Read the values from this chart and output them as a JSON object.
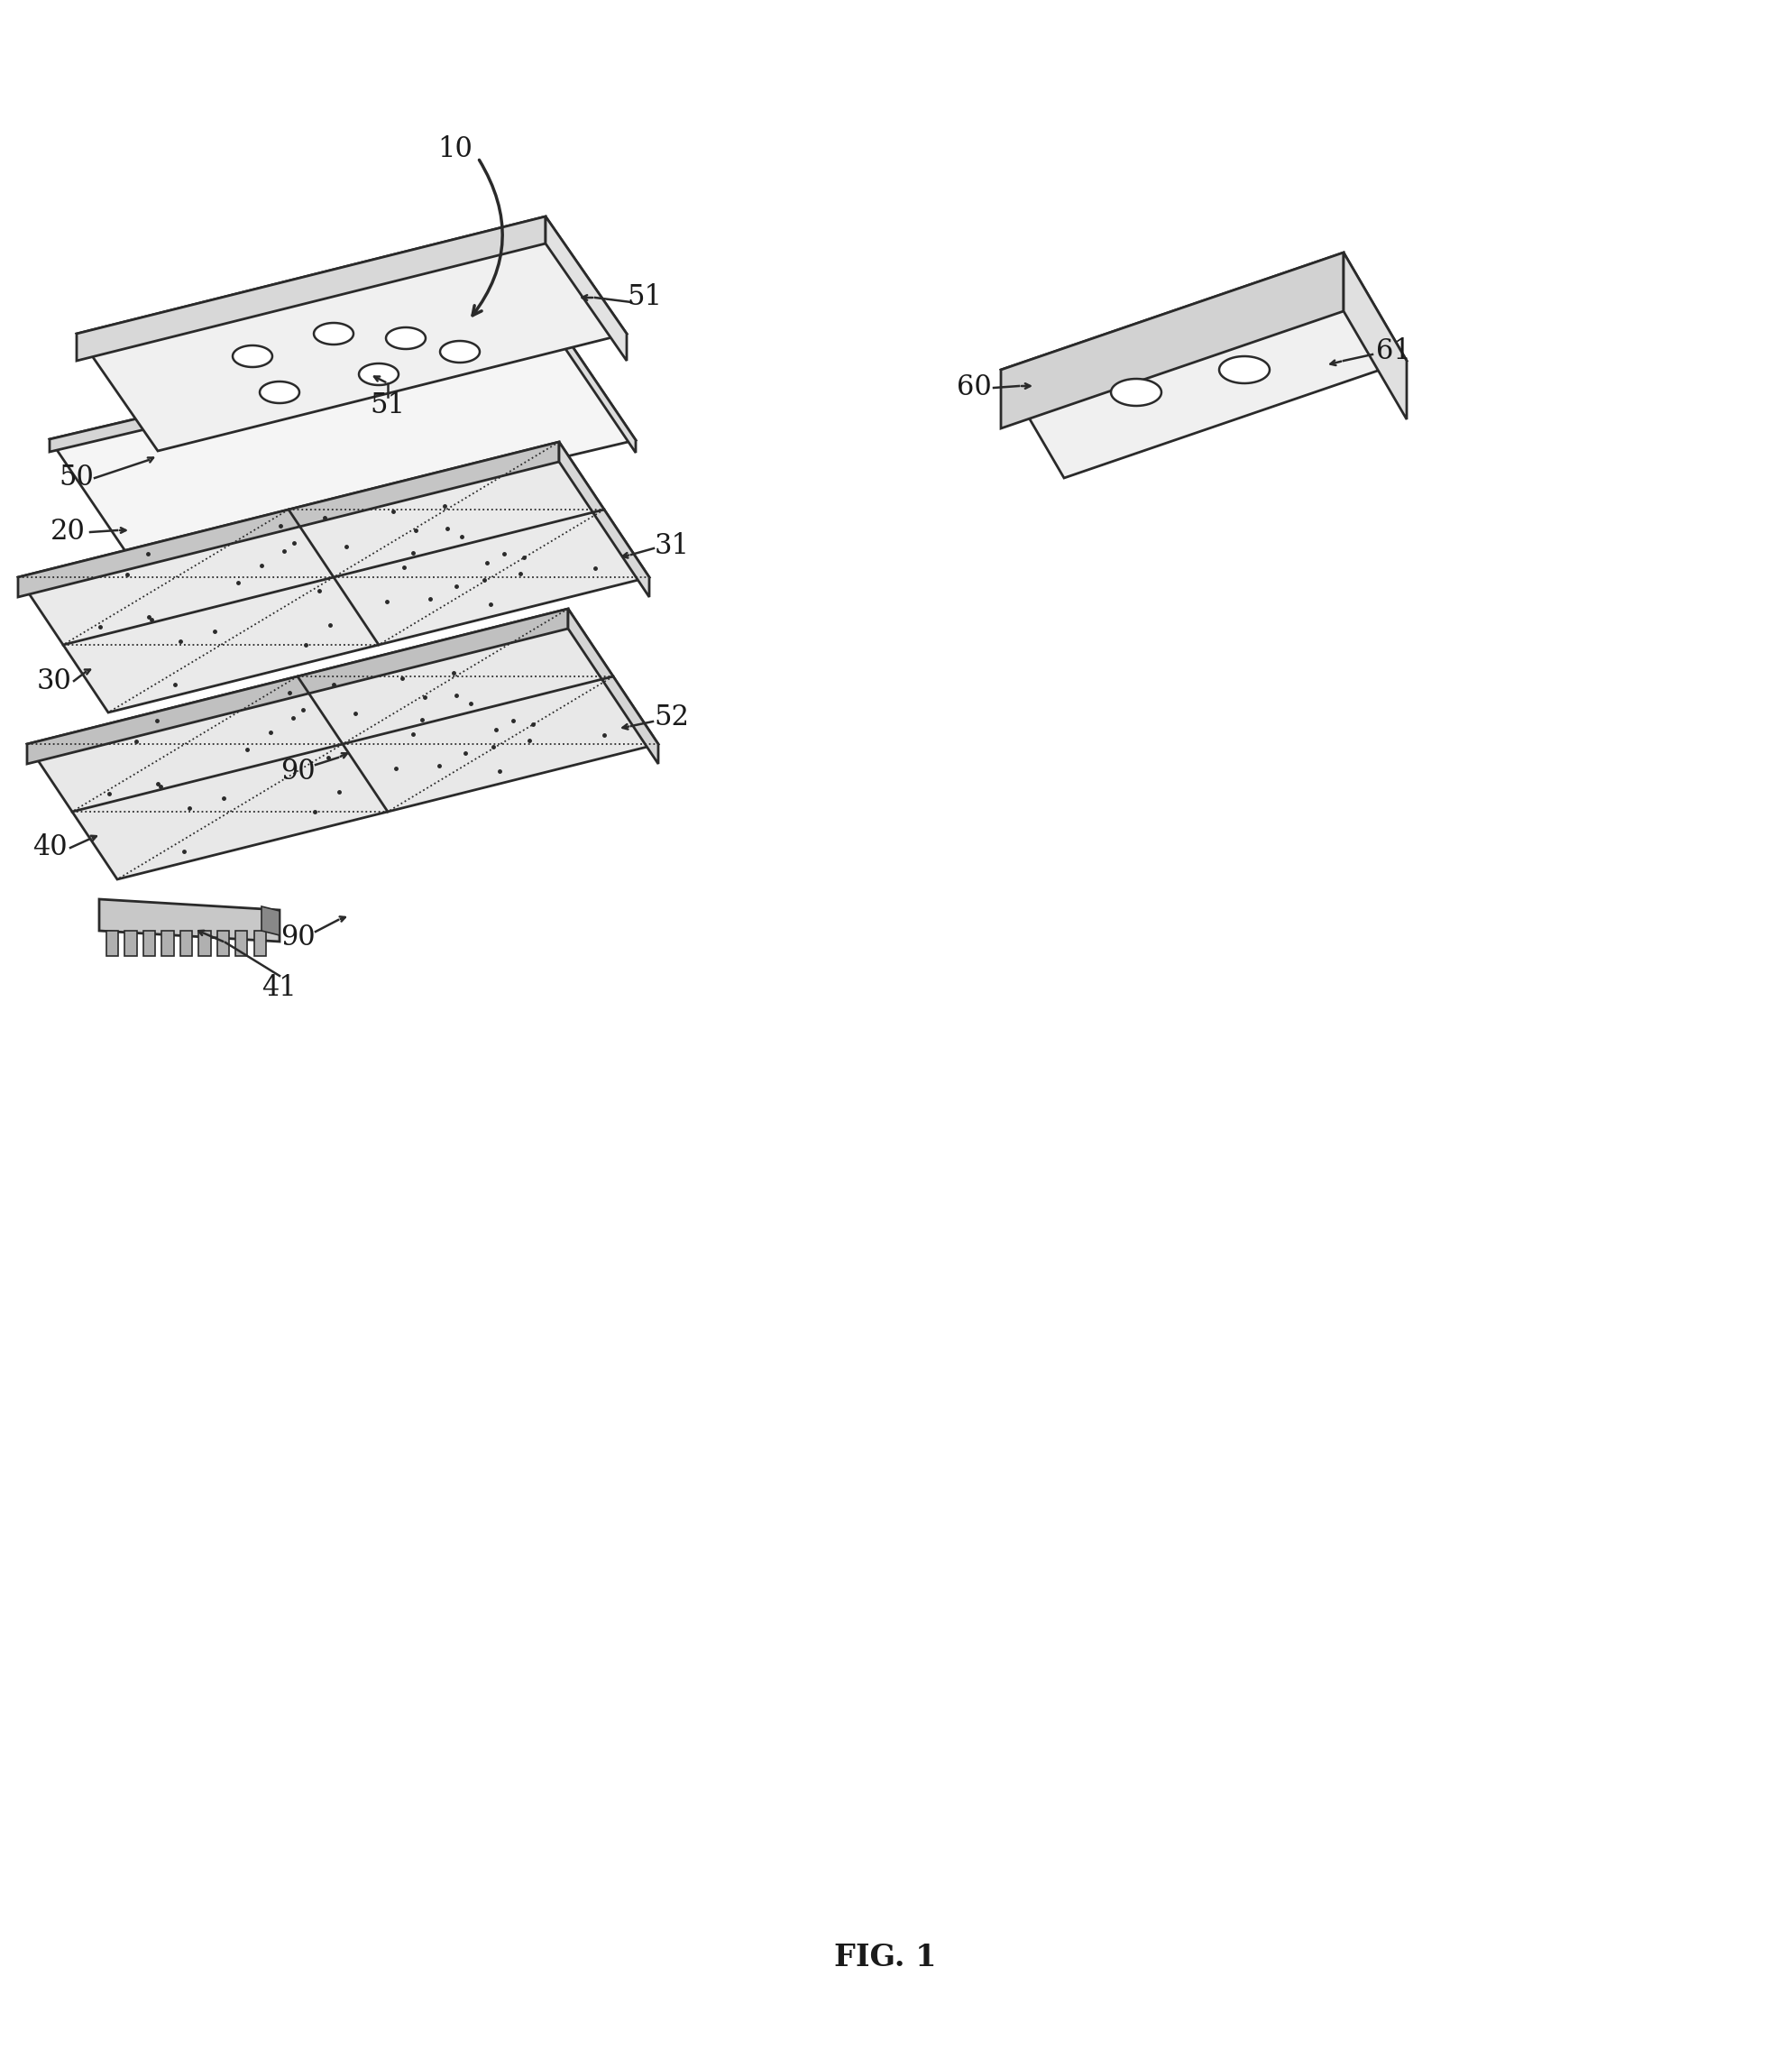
{
  "bg_color": "#ffffff",
  "line_color": "#2a2a2a",
  "fig_width": 19.64,
  "fig_height": 22.83,
  "title": "FIG. 1",
  "title_fontsize": 24,
  "label_fontsize": 22
}
